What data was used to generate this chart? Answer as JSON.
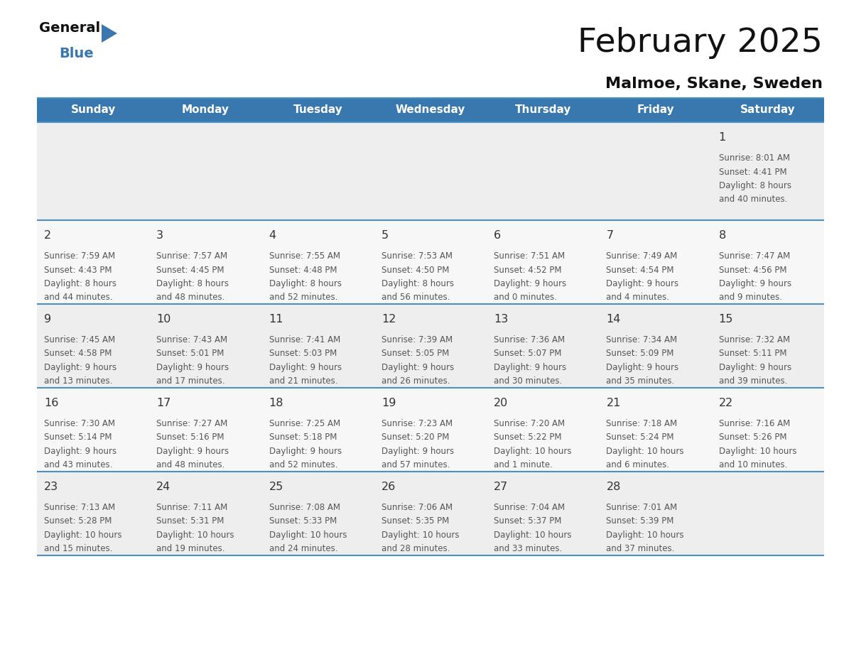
{
  "title": "February 2025",
  "subtitle": "Malmoe, Skane, Sweden",
  "header_color": "#3878ae",
  "header_text_color": "#ffffff",
  "days_of_week": [
    "Sunday",
    "Monday",
    "Tuesday",
    "Wednesday",
    "Thursday",
    "Friday",
    "Saturday"
  ],
  "background_color": "#ffffff",
  "cell_bg_row0": "#eeeeee",
  "cell_bg_row1": "#f7f7f7",
  "cell_bg_row2": "#eeeeee",
  "cell_bg_row3": "#f7f7f7",
  "cell_bg_row4": "#eeeeee",
  "day_number_color": "#333333",
  "text_color": "#555555",
  "border_color": "#4a90c4",
  "title_color": "#111111",
  "subtitle_color": "#111111",
  "logo_general_color": "#111111",
  "logo_blue_color": "#3878ae",
  "logo_triangle_color": "#3878ae",
  "calendar_data": [
    [
      null,
      null,
      null,
      null,
      null,
      null,
      {
        "day": "1",
        "sunrise": "8:01 AM",
        "sunset": "4:41 PM",
        "daylight_line1": "8 hours",
        "daylight_line2": "and 40 minutes."
      }
    ],
    [
      {
        "day": "2",
        "sunrise": "7:59 AM",
        "sunset": "4:43 PM",
        "daylight_line1": "8 hours",
        "daylight_line2": "and 44 minutes."
      },
      {
        "day": "3",
        "sunrise": "7:57 AM",
        "sunset": "4:45 PM",
        "daylight_line1": "8 hours",
        "daylight_line2": "and 48 minutes."
      },
      {
        "day": "4",
        "sunrise": "7:55 AM",
        "sunset": "4:48 PM",
        "daylight_line1": "8 hours",
        "daylight_line2": "and 52 minutes."
      },
      {
        "day": "5",
        "sunrise": "7:53 AM",
        "sunset": "4:50 PM",
        "daylight_line1": "8 hours",
        "daylight_line2": "and 56 minutes."
      },
      {
        "day": "6",
        "sunrise": "7:51 AM",
        "sunset": "4:52 PM",
        "daylight_line1": "9 hours",
        "daylight_line2": "and 0 minutes."
      },
      {
        "day": "7",
        "sunrise": "7:49 AM",
        "sunset": "4:54 PM",
        "daylight_line1": "9 hours",
        "daylight_line2": "and 4 minutes."
      },
      {
        "day": "8",
        "sunrise": "7:47 AM",
        "sunset": "4:56 PM",
        "daylight_line1": "9 hours",
        "daylight_line2": "and 9 minutes."
      }
    ],
    [
      {
        "day": "9",
        "sunrise": "7:45 AM",
        "sunset": "4:58 PM",
        "daylight_line1": "9 hours",
        "daylight_line2": "and 13 minutes."
      },
      {
        "day": "10",
        "sunrise": "7:43 AM",
        "sunset": "5:01 PM",
        "daylight_line1": "9 hours",
        "daylight_line2": "and 17 minutes."
      },
      {
        "day": "11",
        "sunrise": "7:41 AM",
        "sunset": "5:03 PM",
        "daylight_line1": "9 hours",
        "daylight_line2": "and 21 minutes."
      },
      {
        "day": "12",
        "sunrise": "7:39 AM",
        "sunset": "5:05 PM",
        "daylight_line1": "9 hours",
        "daylight_line2": "and 26 minutes."
      },
      {
        "day": "13",
        "sunrise": "7:36 AM",
        "sunset": "5:07 PM",
        "daylight_line1": "9 hours",
        "daylight_line2": "and 30 minutes."
      },
      {
        "day": "14",
        "sunrise": "7:34 AM",
        "sunset": "5:09 PM",
        "daylight_line1": "9 hours",
        "daylight_line2": "and 35 minutes."
      },
      {
        "day": "15",
        "sunrise": "7:32 AM",
        "sunset": "5:11 PM",
        "daylight_line1": "9 hours",
        "daylight_line2": "and 39 minutes."
      }
    ],
    [
      {
        "day": "16",
        "sunrise": "7:30 AM",
        "sunset": "5:14 PM",
        "daylight_line1": "9 hours",
        "daylight_line2": "and 43 minutes."
      },
      {
        "day": "17",
        "sunrise": "7:27 AM",
        "sunset": "5:16 PM",
        "daylight_line1": "9 hours",
        "daylight_line2": "and 48 minutes."
      },
      {
        "day": "18",
        "sunrise": "7:25 AM",
        "sunset": "5:18 PM",
        "daylight_line1": "9 hours",
        "daylight_line2": "and 52 minutes."
      },
      {
        "day": "19",
        "sunrise": "7:23 AM",
        "sunset": "5:20 PM",
        "daylight_line1": "9 hours",
        "daylight_line2": "and 57 minutes."
      },
      {
        "day": "20",
        "sunrise": "7:20 AM",
        "sunset": "5:22 PM",
        "daylight_line1": "10 hours",
        "daylight_line2": "and 1 minute."
      },
      {
        "day": "21",
        "sunrise": "7:18 AM",
        "sunset": "5:24 PM",
        "daylight_line1": "10 hours",
        "daylight_line2": "and 6 minutes."
      },
      {
        "day": "22",
        "sunrise": "7:16 AM",
        "sunset": "5:26 PM",
        "daylight_line1": "10 hours",
        "daylight_line2": "and 10 minutes."
      }
    ],
    [
      {
        "day": "23",
        "sunrise": "7:13 AM",
        "sunset": "5:28 PM",
        "daylight_line1": "10 hours",
        "daylight_line2": "and 15 minutes."
      },
      {
        "day": "24",
        "sunrise": "7:11 AM",
        "sunset": "5:31 PM",
        "daylight_line1": "10 hours",
        "daylight_line2": "and 19 minutes."
      },
      {
        "day": "25",
        "sunrise": "7:08 AM",
        "sunset": "5:33 PM",
        "daylight_line1": "10 hours",
        "daylight_line2": "and 24 minutes."
      },
      {
        "day": "26",
        "sunrise": "7:06 AM",
        "sunset": "5:35 PM",
        "daylight_line1": "10 hours",
        "daylight_line2": "and 28 minutes."
      },
      {
        "day": "27",
        "sunrise": "7:04 AM",
        "sunset": "5:37 PM",
        "daylight_line1": "10 hours",
        "daylight_line2": "and 33 minutes."
      },
      {
        "day": "28",
        "sunrise": "7:01 AM",
        "sunset": "5:39 PM",
        "daylight_line1": "10 hours",
        "daylight_line2": "and 37 minutes."
      },
      null
    ]
  ]
}
